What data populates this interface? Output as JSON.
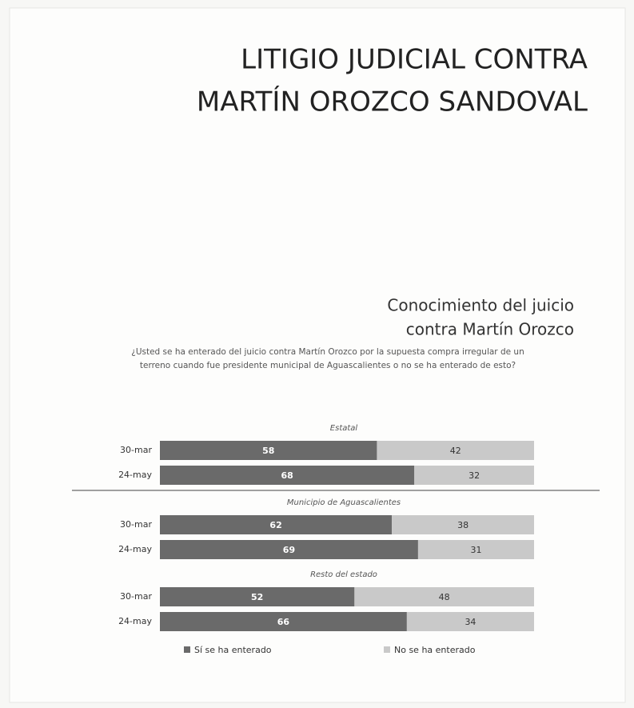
{
  "page_title": [
    "LITIGIO JUDICIAL CONTRA",
    "MARTÍN OROZCO SANDOVAL"
  ],
  "chart_data": {
    "type": "stacked-bar",
    "title": [
      "Conocimiento del juicio",
      "contra Martín Orozco"
    ],
    "subtitle": "¿Usted se ha enterado del juicio contra Martín Orozco por la supuesta compra irregular de un terreno cuando fue presidente municipal de Aguascalientes o no se ha enterado de esto?",
    "xlim": [
      0,
      100
    ],
    "groups": [
      {
        "name": "Estatal",
        "categories": [
          "30-mar",
          "24-may"
        ]
      },
      {
        "name": "Municipio de Aguascalientes",
        "categories": [
          "30-mar",
          "24-may"
        ]
      },
      {
        "name": "Resto del estado",
        "categories": [
          "30-mar",
          "24-may"
        ]
      }
    ],
    "series": [
      {
        "name": "Sí se ha enterado",
        "color": "#6a6a6a",
        "values": [
          58,
          68,
          62,
          69,
          52,
          66
        ]
      },
      {
        "name": "No se ha enterado",
        "color": "#c9c9c9",
        "values": [
          42,
          32,
          38,
          31,
          48,
          34
        ]
      }
    ]
  }
}
